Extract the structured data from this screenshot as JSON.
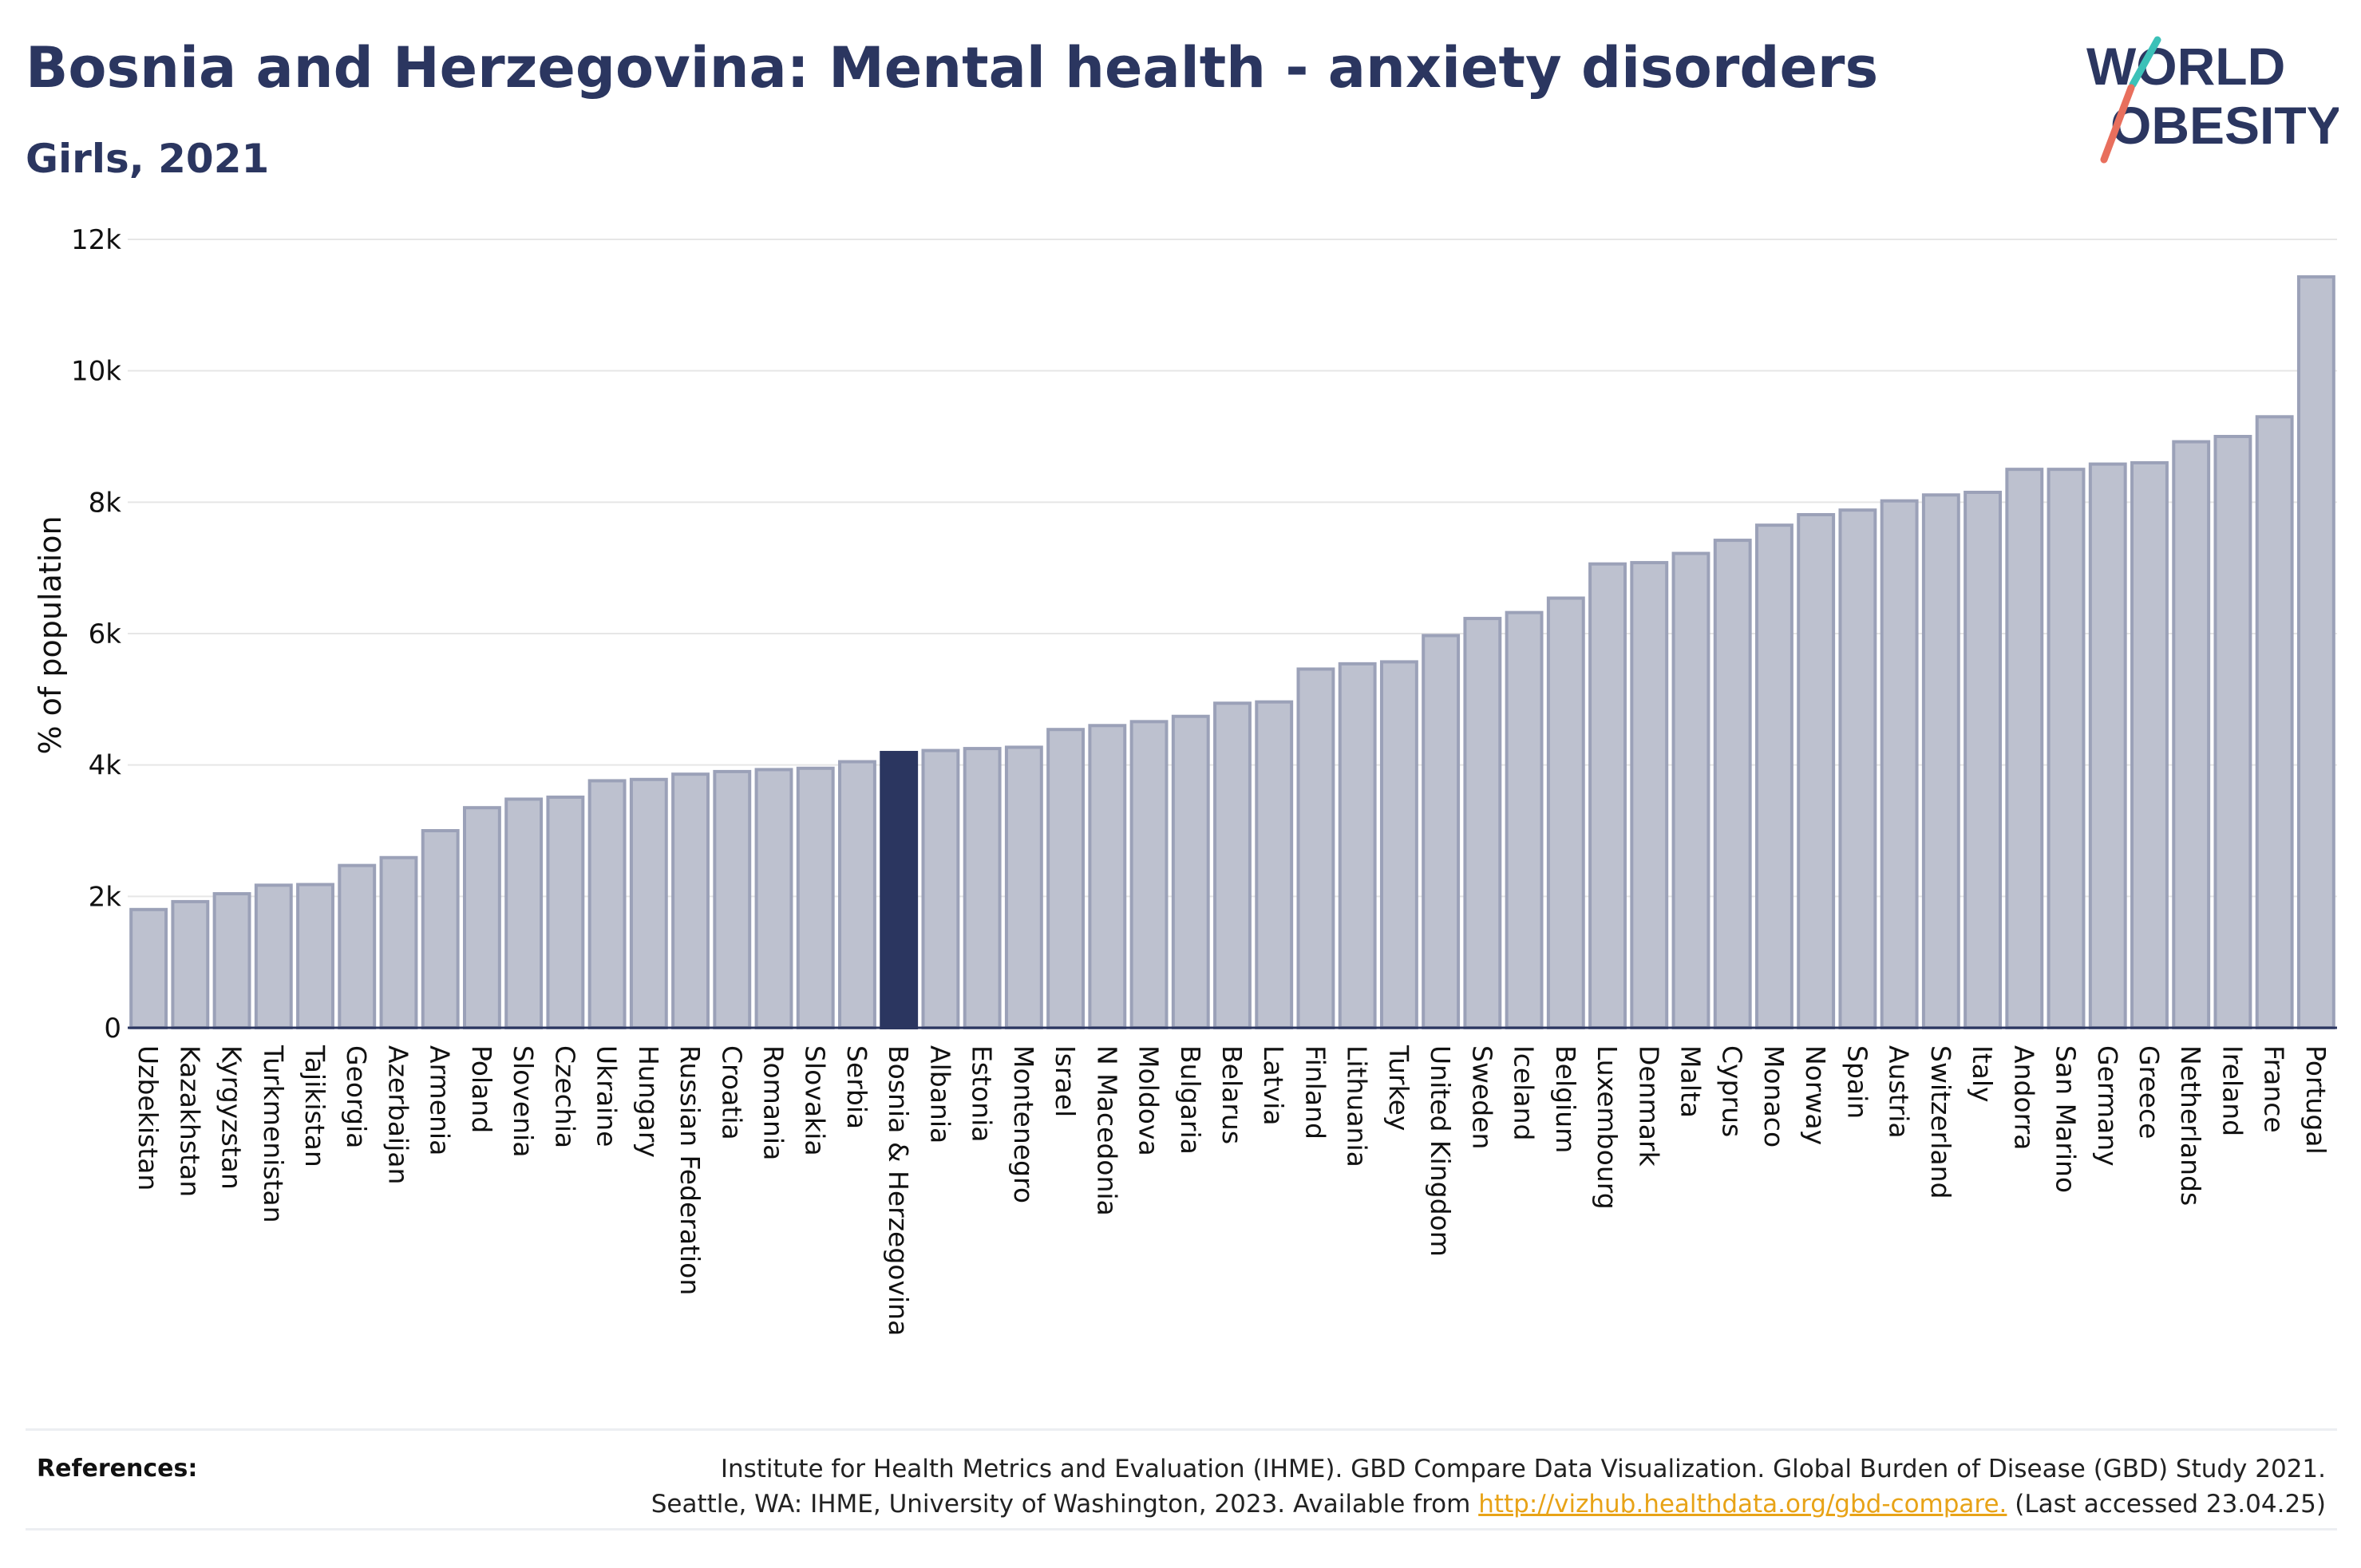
{
  "header": {
    "title": "Bosnia and Herzegovina: Mental health - anxiety disorders",
    "subtitle": "Girls, 2021"
  },
  "logo": {
    "line1": "WORLD",
    "line2": "OBESITY"
  },
  "colors": {
    "bar": "#bdc1cf",
    "bar_stroke": "#9ba1b8",
    "highlight": "#2b3660",
    "text": "#2b3660",
    "grid": "#e6e6e6",
    "link": "#e8a317"
  },
  "chart_data": {
    "type": "bar",
    "ylabel": "% of population",
    "xlabel": "",
    "ylim": [
      0,
      12000
    ],
    "yticks": [
      0,
      2000,
      4000,
      6000,
      8000,
      10000,
      12000
    ],
    "ytick_labels": [
      "0",
      "2k",
      "4k",
      "6k",
      "8k",
      "10k",
      "12k"
    ],
    "grid": "horizontal",
    "highlight": "Bosnia & Herzegovina",
    "categories": [
      "Uzbekistan",
      "Kazakhstan",
      "Kyrgyzstan",
      "Turkmenistan",
      "Tajikistan",
      "Georgia",
      "Azerbaijan",
      "Armenia",
      "Poland",
      "Slovenia",
      "Czechia",
      "Ukraine",
      "Hungary",
      "Russian Federation",
      "Croatia",
      "Romania",
      "Slovakia",
      "Serbia",
      "Bosnia & Herzegovina",
      "Albania",
      "Estonia",
      "Montenegro",
      "Israel",
      "N Macedonia",
      "Moldova",
      "Bulgaria",
      "Belarus",
      "Latvia",
      "Finland",
      "Lithuania",
      "Turkey",
      "United Kingdom",
      "Sweden",
      "Iceland",
      "Belgium",
      "Luxembourg",
      "Denmark",
      "Malta",
      "Cyprus",
      "Monaco",
      "Norway",
      "Spain",
      "Austria",
      "Switzerland",
      "Italy",
      "Andorra",
      "San Marino",
      "Germany",
      "Greece",
      "Netherlands",
      "Ireland",
      "France",
      "Portugal"
    ],
    "values": [
      1800,
      1920,
      2040,
      2170,
      2180,
      2470,
      2590,
      3000,
      3350,
      3480,
      3510,
      3760,
      3780,
      3860,
      3900,
      3930,
      3950,
      4050,
      4190,
      4220,
      4250,
      4270,
      4540,
      4600,
      4660,
      4740,
      4940,
      4960,
      5460,
      5540,
      5570,
      5970,
      6230,
      6320,
      6540,
      7060,
      7080,
      7220,
      7420,
      7650,
      7810,
      7880,
      8020,
      8110,
      8150,
      8500,
      8500,
      8580,
      8600,
      8920,
      9000,
      9300,
      11430
    ]
  },
  "references": {
    "label": "References:",
    "line1": "Institute for Health Metrics and Evaluation (IHME). GBD Compare Data Visualization. Global Burden of Disease (GBD) Study 2021.",
    "line2_prefix": "Seattle, WA: IHME, University of Washington, 2023. Available from ",
    "link": "http://vizhub.healthdata.org/gbd-compare.",
    "line2_suffix": " (Last accessed 23.04.25)"
  }
}
